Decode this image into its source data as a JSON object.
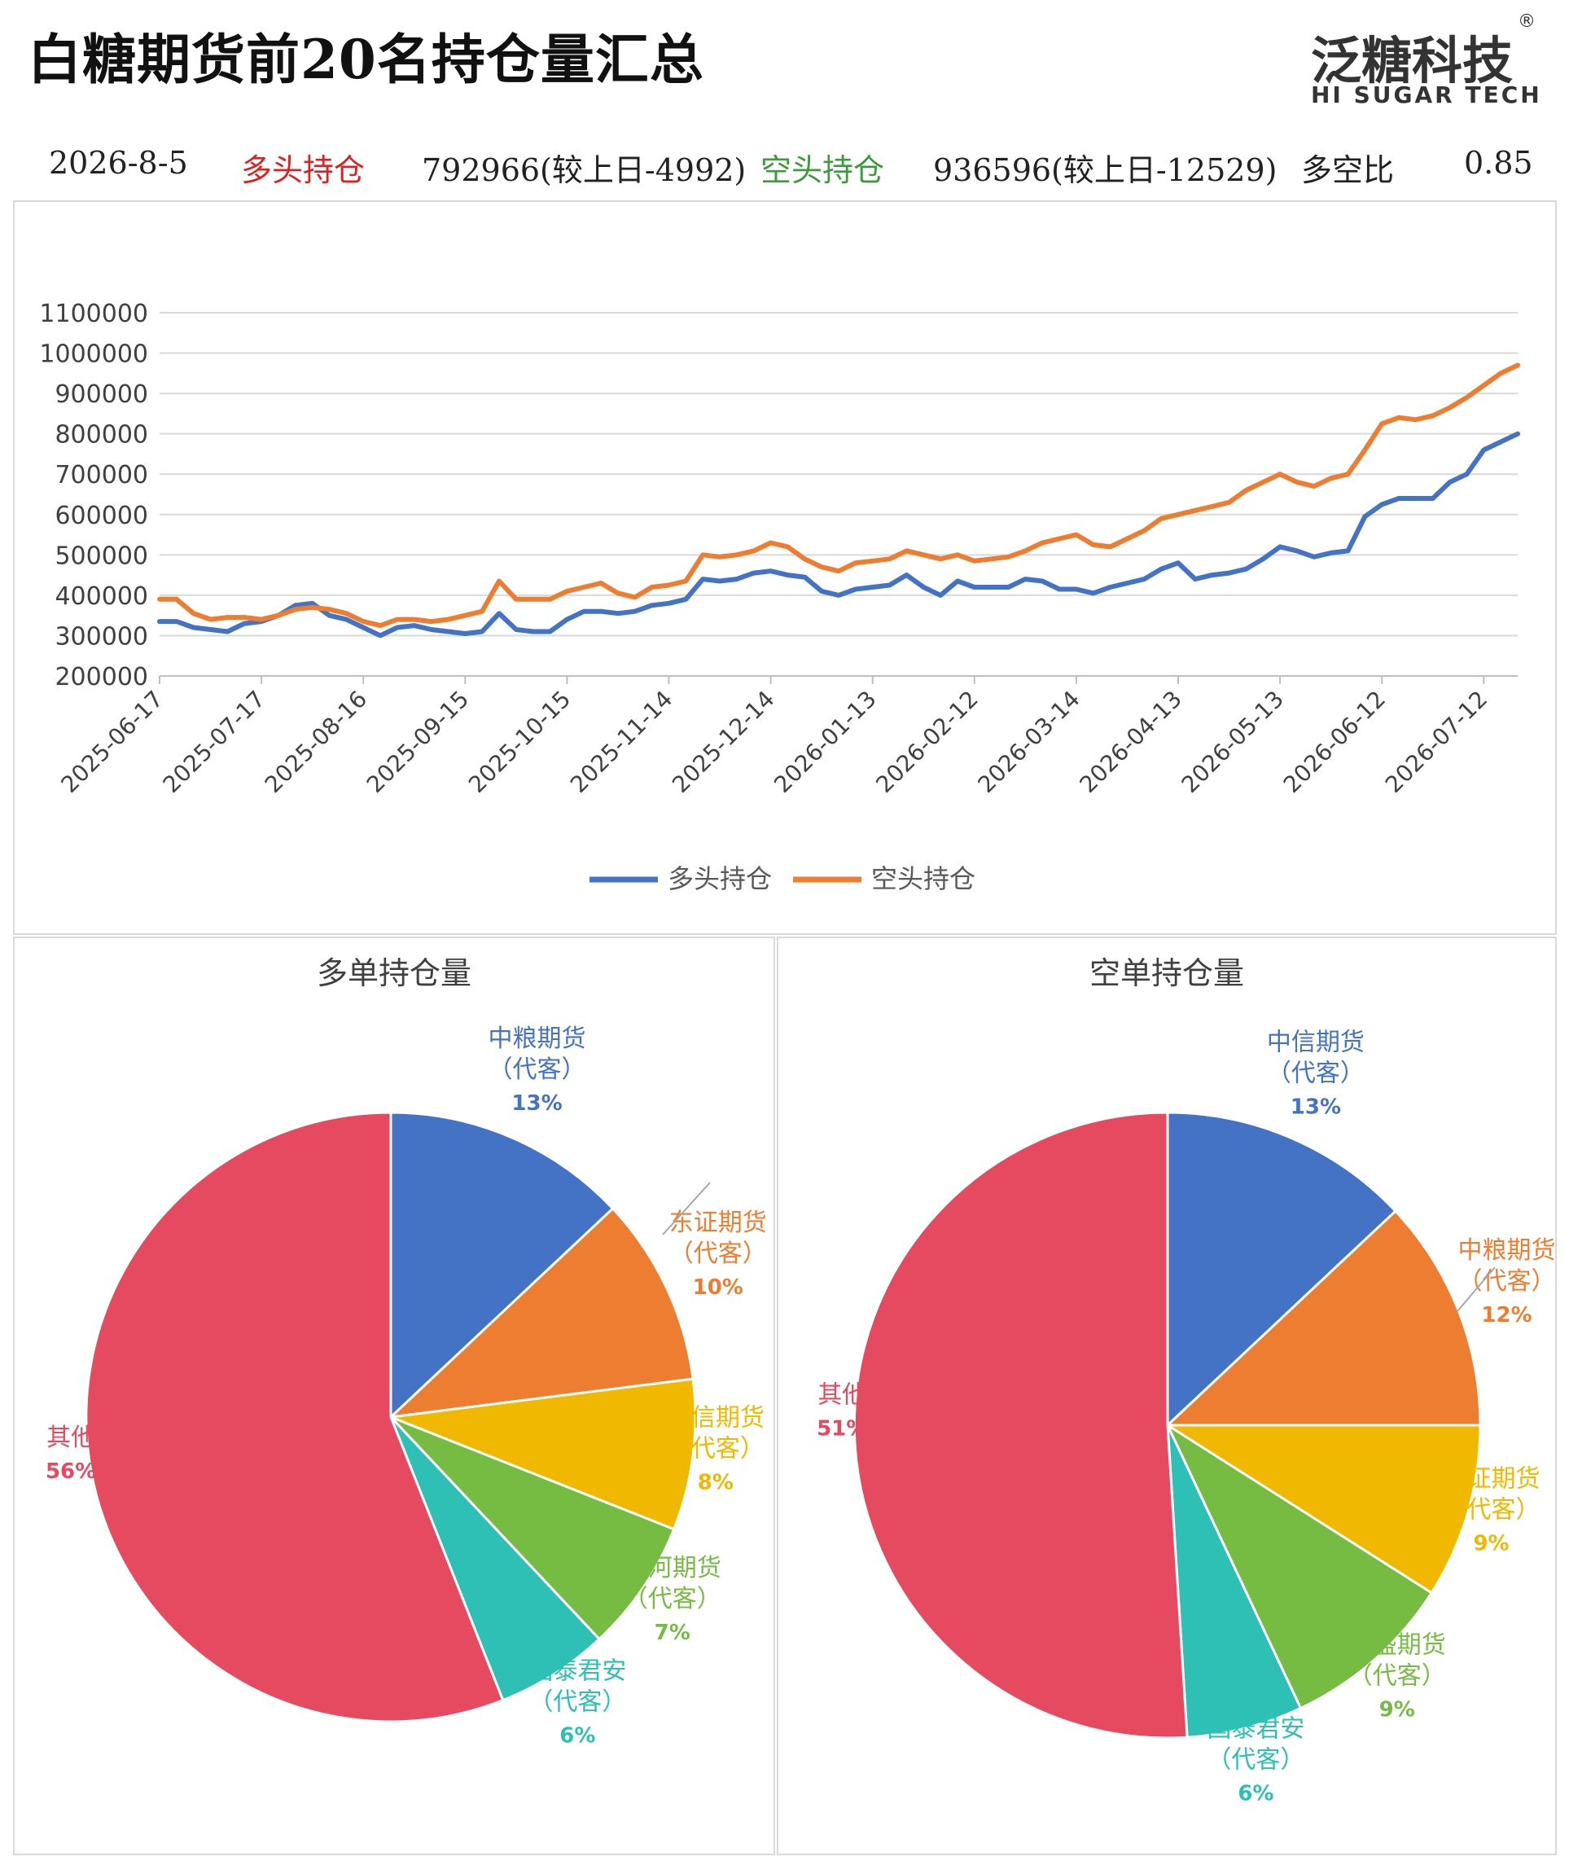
{
  "header": {
    "title": "白糖期货前20名持仓量汇总",
    "logo_main": "泛糖科技",
    "logo_reg": "®",
    "logo_sub": "HI SUGAR TECH"
  },
  "info": {
    "date": "2026-8-5",
    "long_label": "多头持仓",
    "long_value": "792966(较上日-4992)",
    "short_label": "空头持仓",
    "short_value": "936596(较上日-12529)",
    "ratio_label": "多空比",
    "ratio_value": "0.85"
  },
  "colors": {
    "long": "#4472C4",
    "short": "#ED7D31",
    "long_text": "#E02020",
    "short_text": "#3E9A3E"
  },
  "chart_data": [
    {
      "type": "line",
      "title": "",
      "xlabel": "",
      "ylabel": "",
      "ylim": [
        200000,
        1100000
      ],
      "y_ticks": [
        "1100000",
        "1000000",
        "900000",
        "800000",
        "700000",
        "600000",
        "500000",
        "400000",
        "300000",
        "200000"
      ],
      "x_ticks": [
        "2025-06-17",
        "2025-07-17",
        "2025-08-16",
        "2025-09-15",
        "2025-10-15",
        "2025-11-14",
        "2025-12-14",
        "2026-01-13",
        "2026-02-12",
        "2026-03-14",
        "2026-04-13",
        "2026-05-13",
        "2026-06-12",
        "2026-07-12"
      ],
      "grid": true,
      "legend": "bottom",
      "x": [
        "2025-06-17",
        "2025-06-22",
        "2025-06-27",
        "2025-07-02",
        "2025-07-07",
        "2025-07-12",
        "2025-07-17",
        "2025-07-22",
        "2025-07-27",
        "2025-08-01",
        "2025-08-06",
        "2025-08-11",
        "2025-08-16",
        "2025-08-21",
        "2025-08-26",
        "2025-08-31",
        "2025-09-05",
        "2025-09-10",
        "2025-09-15",
        "2025-09-20",
        "2025-09-25",
        "2025-09-30",
        "2025-10-05",
        "2025-10-10",
        "2025-10-15",
        "2025-10-20",
        "2025-10-25",
        "2025-10-30",
        "2025-11-04",
        "2025-11-09",
        "2025-11-14",
        "2025-11-19",
        "2025-11-24",
        "2025-11-29",
        "2025-12-04",
        "2025-12-09",
        "2025-12-14",
        "2025-12-19",
        "2025-12-24",
        "2025-12-29",
        "2026-01-03",
        "2026-01-08",
        "2026-01-13",
        "2026-01-18",
        "2026-01-23",
        "2026-01-28",
        "2026-02-02",
        "2026-02-07",
        "2026-02-12",
        "2026-02-17",
        "2026-02-22",
        "2026-02-27",
        "2026-03-04",
        "2026-03-09",
        "2026-03-14",
        "2026-03-19",
        "2026-03-24",
        "2026-03-29",
        "2026-04-03",
        "2026-04-08",
        "2026-04-13",
        "2026-04-18",
        "2026-04-23",
        "2026-04-28",
        "2026-05-03",
        "2026-05-08",
        "2026-05-13",
        "2026-05-18",
        "2026-05-23",
        "2026-05-28",
        "2026-06-02",
        "2026-06-07",
        "2026-06-12",
        "2026-06-17",
        "2026-06-22",
        "2026-06-27",
        "2026-07-02",
        "2026-07-07",
        "2026-07-12",
        "2026-07-17",
        "2026-07-22"
      ],
      "series": [
        {
          "name": "多头持仓",
          "color": "#4472C4",
          "values": [
            335000,
            335000,
            320000,
            315000,
            310000,
            330000,
            335000,
            350000,
            375000,
            380000,
            350000,
            340000,
            320000,
            300000,
            320000,
            325000,
            315000,
            310000,
            305000,
            310000,
            355000,
            315000,
            310000,
            310000,
            340000,
            360000,
            360000,
            355000,
            360000,
            375000,
            380000,
            390000,
            440000,
            435000,
            440000,
            455000,
            460000,
            450000,
            445000,
            410000,
            400000,
            415000,
            420000,
            425000,
            450000,
            420000,
            400000,
            435000,
            420000,
            420000,
            420000,
            440000,
            435000,
            415000,
            415000,
            405000,
            420000,
            430000,
            440000,
            465000,
            480000,
            440000,
            450000,
            455000,
            465000,
            490000,
            520000,
            510000,
            495000,
            505000,
            510000,
            595000,
            625000,
            640000,
            640000,
            640000,
            680000,
            700000,
            760000,
            780000,
            800000
          ]
        },
        {
          "name": "空头持仓",
          "color": "#ED7D31",
          "values": [
            390000,
            390000,
            355000,
            340000,
            345000,
            345000,
            340000,
            350000,
            365000,
            370000,
            365000,
            355000,
            335000,
            325000,
            340000,
            340000,
            335000,
            340000,
            350000,
            360000,
            435000,
            390000,
            390000,
            390000,
            410000,
            420000,
            430000,
            405000,
            395000,
            420000,
            425000,
            435000,
            500000,
            495000,
            500000,
            510000,
            530000,
            520000,
            490000,
            470000,
            460000,
            480000,
            485000,
            490000,
            510000,
            500000,
            490000,
            500000,
            485000,
            490000,
            495000,
            510000,
            530000,
            540000,
            550000,
            525000,
            520000,
            540000,
            560000,
            590000,
            600000,
            610000,
            620000,
            630000,
            660000,
            680000,
            700000,
            680000,
            670000,
            690000,
            700000,
            760000,
            825000,
            840000,
            835000,
            845000,
            865000,
            890000,
            920000,
            950000,
            970000
          ]
        }
      ]
    },
    {
      "type": "pie",
      "title": "多单持仓量",
      "slices": [
        {
          "label": "中粮期货（代客）",
          "value": 13,
          "pct": "13%",
          "color": "#4472C4"
        },
        {
          "label": "东证期货（代客）",
          "value": 10,
          "pct": "10%",
          "color": "#ED7D31"
        },
        {
          "label": "中信期货（代客）",
          "value": 8,
          "pct": "8%",
          "color": "#F0B800"
        },
        {
          "label": "银河期货（代客）",
          "value": 7,
          "pct": "7%",
          "color": "#77BC42"
        },
        {
          "label": "国泰君安（代客）",
          "value": 6,
          "pct": "6%",
          "color": "#2EC0B4"
        },
        {
          "label": "其他",
          "value": 56,
          "pct": "56%",
          "color": "#E54A61"
        }
      ]
    },
    {
      "type": "pie",
      "title": "空单持仓量",
      "slices": [
        {
          "label": "中信期货（代客）",
          "value": 13,
          "pct": "13%",
          "color": "#4472C4"
        },
        {
          "label": "中粮期货（代客）",
          "value": 12,
          "pct": "12%",
          "color": "#ED7D31"
        },
        {
          "label": "东证期货（代客）",
          "value": 9,
          "pct": "9%",
          "color": "#F0B800"
        },
        {
          "label": "高盛期货（代客）",
          "value": 9,
          "pct": "9%",
          "color": "#77BC42"
        },
        {
          "label": "国泰君安（代客）",
          "value": 6,
          "pct": "6%",
          "color": "#2EC0B4"
        },
        {
          "label": "其他",
          "value": 51,
          "pct": "51%",
          "color": "#E54A61"
        }
      ]
    }
  ]
}
